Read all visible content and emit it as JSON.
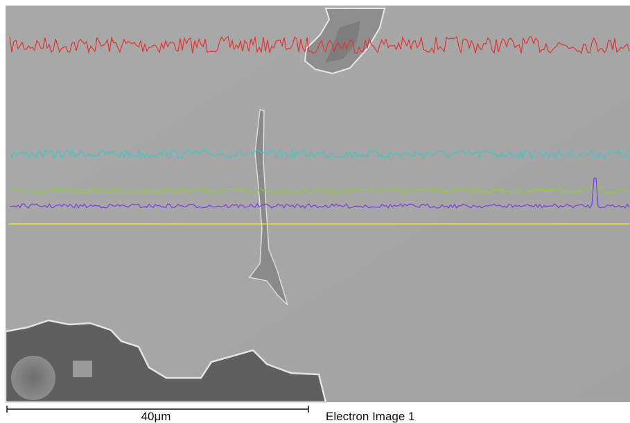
{
  "scale_bar": {
    "label": "40μm"
  },
  "caption": "Electron Image 1"
}
